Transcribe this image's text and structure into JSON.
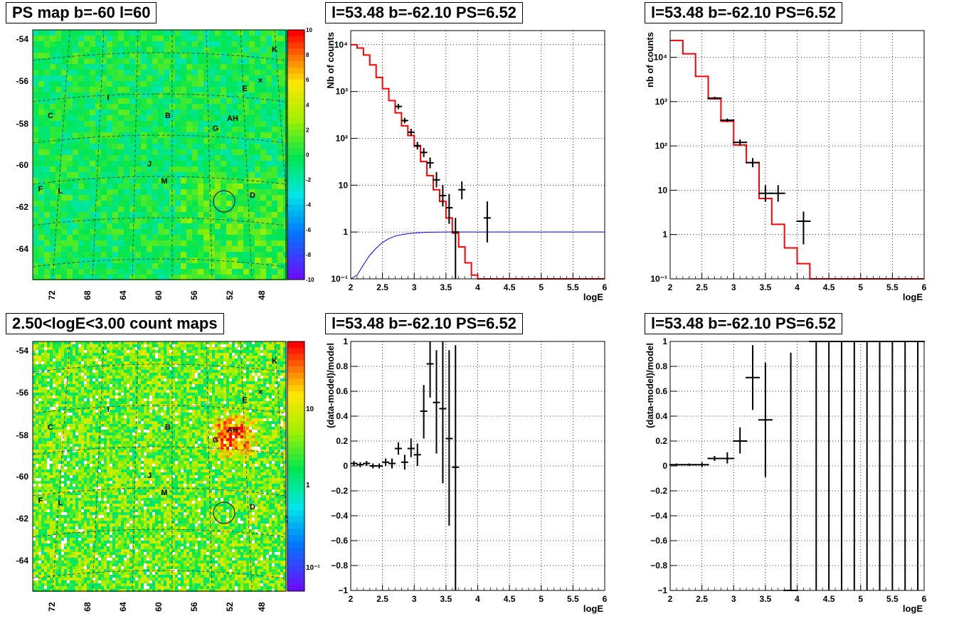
{
  "panels": {
    "map1": {
      "title": "PS map b=-60 l=60"
    },
    "map2": {
      "title": "2.50<logE<3.00 count maps"
    },
    "p1": {
      "title": "l=53.48 b=-62.10 PS=6.52"
    },
    "p2": {
      "title": "l=53.48 b=-62.10 PS=6.52"
    },
    "p3": {
      "title": "l=53.48 b=-62.10 PS=6.52"
    },
    "p4": {
      "title": "l=53.48 b=-62.10 PS=6.52"
    }
  },
  "maps": {
    "y_ticks": [
      "-54",
      "-56",
      "-58",
      "-60",
      "-62",
      "-64"
    ],
    "x_ticks": [
      "72",
      "68",
      "64",
      "60",
      "56",
      "52",
      "48"
    ],
    "source_labels": [
      "K",
      "E",
      "I",
      "C",
      "B",
      "AH",
      "G",
      "J",
      "M",
      "F",
      "L",
      "D"
    ],
    "colorbar1_ticks": [
      "10",
      "8",
      "6",
      "4",
      "2",
      "0",
      "-2",
      "-4",
      "-6",
      "-8",
      "-10"
    ],
    "colorbar2_ticks": [
      "10",
      "1",
      "10⁻¹"
    ]
  },
  "chart_data": [
    {
      "id": "spectrum_left",
      "type": "line",
      "title": "l=53.48 b=-62.10 PS=6.52",
      "xlabel": "logE",
      "ylabel": "Nb of counts",
      "xlim": [
        2,
        6
      ],
      "ylim": [
        0.1,
        20000
      ],
      "yscale": "log",
      "grid": true,
      "x_ticks": [
        "2",
        "2.5",
        "3",
        "3.5",
        "4",
        "4.5",
        "5",
        "5.5",
        "6"
      ],
      "y_ticks": [
        "10⁻¹",
        "1",
        "10",
        "10²",
        "10³",
        "10⁴"
      ],
      "model_color": "#ff0000",
      "ratio_color": "#0000ff",
      "model": {
        "edges": [
          2.0,
          2.1,
          2.2,
          2.3,
          2.4,
          2.5,
          2.6,
          2.7,
          2.8,
          2.9,
          3.0,
          3.1,
          3.2,
          3.3,
          3.4,
          3.5,
          3.6,
          3.7,
          3.8,
          3.9,
          4.0,
          6.0
        ],
        "values": [
          10000,
          8500,
          6000,
          3700,
          2000,
          1150,
          640,
          350,
          185,
          115,
          68,
          32,
          16,
          8,
          4.5,
          2.0,
          0.95,
          0.48,
          0.22,
          0.12,
          0.1
        ]
      },
      "ratio_line": {
        "x": [
          2.0,
          2.1,
          2.2,
          2.3,
          2.4,
          2.5,
          2.6,
          2.7,
          2.8,
          2.9,
          3.0,
          3.1,
          3.2,
          3.5,
          6.0
        ],
        "y": [
          0.1,
          0.12,
          0.2,
          0.32,
          0.45,
          0.6,
          0.72,
          0.82,
          0.88,
          0.92,
          0.95,
          0.97,
          0.99,
          1.0,
          1.0
        ]
      },
      "data_points": [
        {
          "x": 2.75,
          "y": 480,
          "lo": 420,
          "hi": 545
        },
        {
          "x": 2.85,
          "y": 240,
          "lo": 210,
          "hi": 275
        },
        {
          "x": 2.95,
          "y": 135,
          "lo": 115,
          "hi": 160
        },
        {
          "x": 3.05,
          "y": 70,
          "lo": 58,
          "hi": 84
        },
        {
          "x": 3.15,
          "y": 50,
          "lo": 40,
          "hi": 62
        },
        {
          "x": 3.25,
          "y": 30,
          "lo": 23,
          "hi": 39
        },
        {
          "x": 3.35,
          "y": 13,
          "lo": 9,
          "hi": 19
        },
        {
          "x": 3.45,
          "y": 6,
          "lo": 3.5,
          "hi": 10
        },
        {
          "x": 3.55,
          "y": 3.3,
          "lo": 1.5,
          "hi": 6.5
        },
        {
          "x": 3.65,
          "y": 1.0,
          "lo": 0.1,
          "hi": 2.0
        },
        {
          "x": 3.75,
          "y": 8,
          "lo": 5,
          "hi": 12
        },
        {
          "x": 4.15,
          "y": 2,
          "lo": 0.6,
          "hi": 4.5
        }
      ]
    },
    {
      "id": "spectrum_right",
      "type": "line",
      "title": "l=53.48 b=-62.10 PS=6.52",
      "xlabel": "logE",
      "ylabel": "nb of counts",
      "xlim": [
        2,
        6
      ],
      "ylim": [
        0.1,
        40000
      ],
      "yscale": "log",
      "grid": true,
      "x_ticks": [
        "2",
        "2.5",
        "3",
        "3.5",
        "4",
        "4.5",
        "5",
        "5.5",
        "6"
      ],
      "y_ticks": [
        "10⁻¹",
        "1",
        "10",
        "10²",
        "10³",
        "10⁴"
      ],
      "model_color": "#ff0000",
      "model": {
        "edges": [
          2.0,
          2.2,
          2.4,
          2.6,
          2.8,
          3.0,
          3.2,
          3.4,
          3.6,
          3.8,
          4.0,
          4.2,
          6.0
        ],
        "values": [
          24000,
          12000,
          3700,
          1150,
          360,
          105,
          42,
          6.5,
          1.7,
          0.5,
          0.22,
          0.1
        ]
      },
      "data_points": [
        {
          "x": 2.7,
          "y": 1200,
          "lo": 1120,
          "hi": 1290
        },
        {
          "x": 2.9,
          "y": 380,
          "lo": 345,
          "hi": 415
        },
        {
          "x": 3.1,
          "y": 120,
          "lo": 103,
          "hi": 140
        },
        {
          "x": 3.3,
          "y": 42,
          "lo": 33,
          "hi": 53
        },
        {
          "x": 3.5,
          "y": 8.5,
          "lo": 5.5,
          "hi": 13
        },
        {
          "x": 3.7,
          "y": 8.5,
          "lo": 5.5,
          "hi": 13
        },
        {
          "x": 4.1,
          "y": 2.0,
          "lo": 0.6,
          "hi": 3.3
        }
      ]
    },
    {
      "id": "residual_left",
      "type": "scatter",
      "title": "l=53.48 b=-62.10 PS=6.52",
      "xlabel": "logE",
      "ylabel": "(data-model)/model",
      "xlim": [
        2,
        6
      ],
      "ylim": [
        -1,
        1
      ],
      "grid": true,
      "x_ticks": [
        "2",
        "2.5",
        "3",
        "3.5",
        "4",
        "4.5",
        "5",
        "5.5",
        "6"
      ],
      "y_ticks": [
        "−1",
        "−0.8",
        "−0.6",
        "−0.4",
        "−0.2",
        "0",
        "0.2",
        "0.4",
        "0.6",
        "0.8",
        "1"
      ],
      "data_points": [
        {
          "x": 2.05,
          "y": 0.02,
          "lo": 0.0,
          "hi": 0.04
        },
        {
          "x": 2.15,
          "y": 0.01,
          "lo": -0.01,
          "hi": 0.03
        },
        {
          "x": 2.25,
          "y": 0.02,
          "lo": 0.0,
          "hi": 0.04
        },
        {
          "x": 2.35,
          "y": 0.0,
          "lo": -0.02,
          "hi": 0.02
        },
        {
          "x": 2.45,
          "y": 0.0,
          "lo": -0.02,
          "hi": 0.02
        },
        {
          "x": 2.55,
          "y": 0.03,
          "lo": 0.0,
          "hi": 0.06
        },
        {
          "x": 2.65,
          "y": 0.02,
          "lo": -0.02,
          "hi": 0.06
        },
        {
          "x": 2.75,
          "y": 0.14,
          "lo": 0.09,
          "hi": 0.19
        },
        {
          "x": 2.85,
          "y": 0.03,
          "lo": -0.03,
          "hi": 0.09
        },
        {
          "x": 2.95,
          "y": 0.14,
          "lo": 0.07,
          "hi": 0.22
        },
        {
          "x": 3.05,
          "y": 0.09,
          "lo": 0.0,
          "hi": 0.18
        },
        {
          "x": 3.15,
          "y": 0.44,
          "lo": 0.22,
          "hi": 0.65
        },
        {
          "x": 3.25,
          "y": 0.82,
          "lo": 0.55,
          "hi": 1.0
        },
        {
          "x": 3.35,
          "y": 0.51,
          "lo": 0.1,
          "hi": 0.93
        },
        {
          "x": 3.45,
          "y": 0.46,
          "lo": -0.14,
          "hi": 1.0
        },
        {
          "x": 3.55,
          "y": 0.22,
          "lo": -0.48,
          "hi": 0.93
        },
        {
          "x": 3.65,
          "y": -0.01,
          "lo": -1.0,
          "hi": 0.97
        }
      ]
    },
    {
      "id": "residual_right",
      "type": "scatter",
      "title": "l=53.48 b=-62.10 PS=6.52",
      "xlabel": "logE",
      "ylabel": "(data-model)/model",
      "xlim": [
        2,
        6
      ],
      "ylim": [
        -1,
        1
      ],
      "grid": true,
      "x_ticks": [
        "2",
        "2.5",
        "3",
        "3.5",
        "4",
        "4.5",
        "5",
        "5.5",
        "6"
      ],
      "y_ticks": [
        "−1",
        "−0.8",
        "−0.6",
        "−0.4",
        "−0.2",
        "0",
        "0.2",
        "0.4",
        "0.6",
        "0.8",
        "1"
      ],
      "data_points": [
        {
          "x": 2.1,
          "y": 0.01,
          "lo": 0.0,
          "hi": 0.02
        },
        {
          "x": 2.3,
          "y": 0.01,
          "lo": 0.0,
          "hi": 0.02
        },
        {
          "x": 2.5,
          "y": 0.01,
          "lo": -0.01,
          "hi": 0.03
        },
        {
          "x": 2.7,
          "y": 0.06,
          "lo": 0.04,
          "hi": 0.08
        },
        {
          "x": 2.9,
          "y": 0.06,
          "lo": 0.02,
          "hi": 0.11
        },
        {
          "x": 3.1,
          "y": 0.2,
          "lo": 0.1,
          "hi": 0.31
        },
        {
          "x": 3.3,
          "y": 0.71,
          "lo": 0.45,
          "hi": 0.97
        },
        {
          "x": 3.5,
          "y": 0.37,
          "lo": -0.09,
          "hi": 0.83
        },
        {
          "x": 3.9,
          "y": -1.0,
          "lo": -1.0,
          "hi": 0.91
        },
        {
          "x": 4.3,
          "y": 1.0,
          "lo": -1.0,
          "hi": 1.0
        },
        {
          "x": 4.5,
          "y": 1.0,
          "lo": -1.0,
          "hi": 1.0
        },
        {
          "x": 4.7,
          "y": 1.0,
          "lo": -1.0,
          "hi": 1.0
        },
        {
          "x": 4.9,
          "y": 1.0,
          "lo": -1.0,
          "hi": 1.0
        },
        {
          "x": 5.1,
          "y": 1.0,
          "lo": -1.0,
          "hi": 1.0
        },
        {
          "x": 5.3,
          "y": 1.0,
          "lo": -1.0,
          "hi": 1.0
        },
        {
          "x": 5.5,
          "y": 1.0,
          "lo": -1.0,
          "hi": 1.0
        },
        {
          "x": 5.7,
          "y": 1.0,
          "lo": -1.0,
          "hi": 1.0
        },
        {
          "x": 5.9,
          "y": 1.0,
          "lo": -1.0,
          "hi": 1.0
        }
      ]
    }
  ]
}
